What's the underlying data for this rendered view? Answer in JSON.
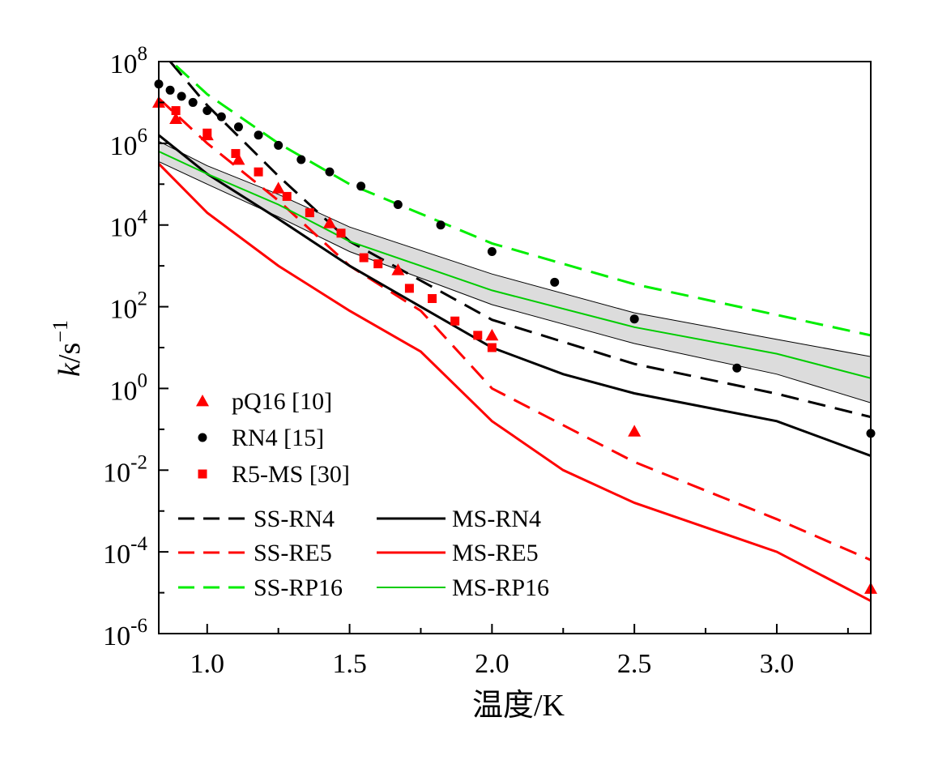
{
  "chart_data": {
    "type": "line",
    "xlabel": "温度/K",
    "ylabel_main": "k",
    "ylabel_unit": "/s",
    "ylabel_sup": "−1",
    "xlim": [
      0.83,
      3.33
    ],
    "ylim_exp": [
      -6,
      8
    ],
    "yscale": "log",
    "y_tick_base": "10",
    "x_ticks": [
      "1.0",
      "1.5",
      "2.0",
      "2.5",
      "3.0"
    ],
    "x_tick_values": [
      1.0,
      1.5,
      2.0,
      2.5,
      3.0
    ],
    "y_tick_exponents": [
      "-6",
      "-4",
      "-2",
      "0",
      "2",
      "4",
      "6",
      "8"
    ],
    "grid": false,
    "lines": [
      {
        "name": "SS-RN4",
        "color": "#000000",
        "dash": "dashed",
        "x": [
          0.87,
          1.0,
          1.25,
          1.5,
          2.0,
          2.5,
          3.0,
          3.33
        ],
        "log10_y": [
          8.0,
          6.93,
          5.2,
          3.6,
          1.68,
          0.6,
          -0.13,
          -0.7
        ]
      },
      {
        "name": "SS-RE5",
        "color": "#ff0000",
        "dash": "dashed",
        "x": [
          0.83,
          1.0,
          1.25,
          1.5,
          1.75,
          2.0,
          2.5,
          3.0,
          3.33
        ],
        "log10_y": [
          7.1,
          6.0,
          4.6,
          3.0,
          1.9,
          0.0,
          -1.8,
          -3.2,
          -4.2
        ]
      },
      {
        "name": "SS-RP16",
        "color": "#00ee00",
        "dash": "dashed",
        "x": [
          0.89,
          1.0,
          1.25,
          1.5,
          2.0,
          2.5,
          3.0,
          3.33
        ],
        "log10_y": [
          7.9,
          7.2,
          6.0,
          5.0,
          3.55,
          2.55,
          1.8,
          1.3
        ]
      },
      {
        "name": "MS-RN4",
        "color": "#000000",
        "dash": "solid",
        "x": [
          0.83,
          1.0,
          1.25,
          1.5,
          1.75,
          2.0,
          2.25,
          2.5,
          3.0,
          3.33
        ],
        "log10_y": [
          6.2,
          5.25,
          4.15,
          3.0,
          2.0,
          1.0,
          0.35,
          -0.12,
          -0.8,
          -1.65
        ]
      },
      {
        "name": "MS-RE5",
        "color": "#ff0000",
        "dash": "solid",
        "x": [
          0.83,
          1.0,
          1.25,
          1.5,
          1.75,
          2.0,
          2.25,
          2.5,
          3.0,
          3.33
        ],
        "log10_y": [
          5.5,
          4.3,
          3.0,
          1.9,
          0.9,
          -0.8,
          -2.0,
          -2.8,
          -4.0,
          -5.2
        ]
      },
      {
        "name": "MS-RP16",
        "color": "#00cc00",
        "dash": "solid",
        "x": [
          0.83,
          1.0,
          1.25,
          1.5,
          2.0,
          2.5,
          3.0,
          3.33
        ],
        "log10_y": [
          5.8,
          5.25,
          4.5,
          3.6,
          2.4,
          1.5,
          0.85,
          0.25
        ]
      }
    ],
    "band": {
      "name": "MS-RP16 uncertainty",
      "x": [
        0.83,
        1.0,
        1.25,
        1.5,
        2.0,
        2.5,
        3.0,
        3.33
      ],
      "log10_upper": [
        6.05,
        5.45,
        4.75,
        3.95,
        2.8,
        1.85,
        1.2,
        0.78
      ],
      "log10_lower": [
        5.55,
        5.0,
        4.2,
        3.35,
        2.05,
        1.1,
        0.35,
        -0.35
      ]
    },
    "scatter": [
      {
        "name": "pQ16 [10]",
        "marker": "triangle",
        "color": "#ff0000",
        "x": [
          0.83,
          0.89,
          1.0,
          1.11,
          1.25,
          1.43,
          1.67,
          2.0,
          2.5,
          3.33
        ],
        "log10_y": [
          7.0,
          6.6,
          6.2,
          5.6,
          4.9,
          4.05,
          2.9,
          1.3,
          -1.05,
          -4.9
        ]
      },
      {
        "name": "RN4 [15]",
        "marker": "circle",
        "color": "#000000",
        "x": [
          0.83,
          0.87,
          0.91,
          0.95,
          1.0,
          1.05,
          1.11,
          1.18,
          1.25,
          1.33,
          1.43,
          1.54,
          1.67,
          1.82,
          2.0,
          2.22,
          2.5,
          2.86,
          3.33
        ],
        "log10_y": [
          7.45,
          7.3,
          7.15,
          7.0,
          6.8,
          6.65,
          6.4,
          6.2,
          5.95,
          5.6,
          5.3,
          4.95,
          4.5,
          4.0,
          3.35,
          2.6,
          1.7,
          0.5,
          -1.1
        ]
      },
      {
        "name": "R5-MS [30]",
        "marker": "square",
        "color": "#ff0000",
        "x": [
          0.89,
          1.0,
          1.1,
          1.18,
          1.28,
          1.36,
          1.47,
          1.55,
          1.6,
          1.71,
          1.79,
          1.87,
          1.95,
          2.0
        ],
        "log10_y": [
          6.8,
          6.25,
          5.75,
          5.3,
          4.7,
          4.3,
          3.8,
          3.2,
          3.05,
          2.45,
          2.2,
          1.65,
          1.3,
          1.0
        ]
      }
    ]
  }
}
